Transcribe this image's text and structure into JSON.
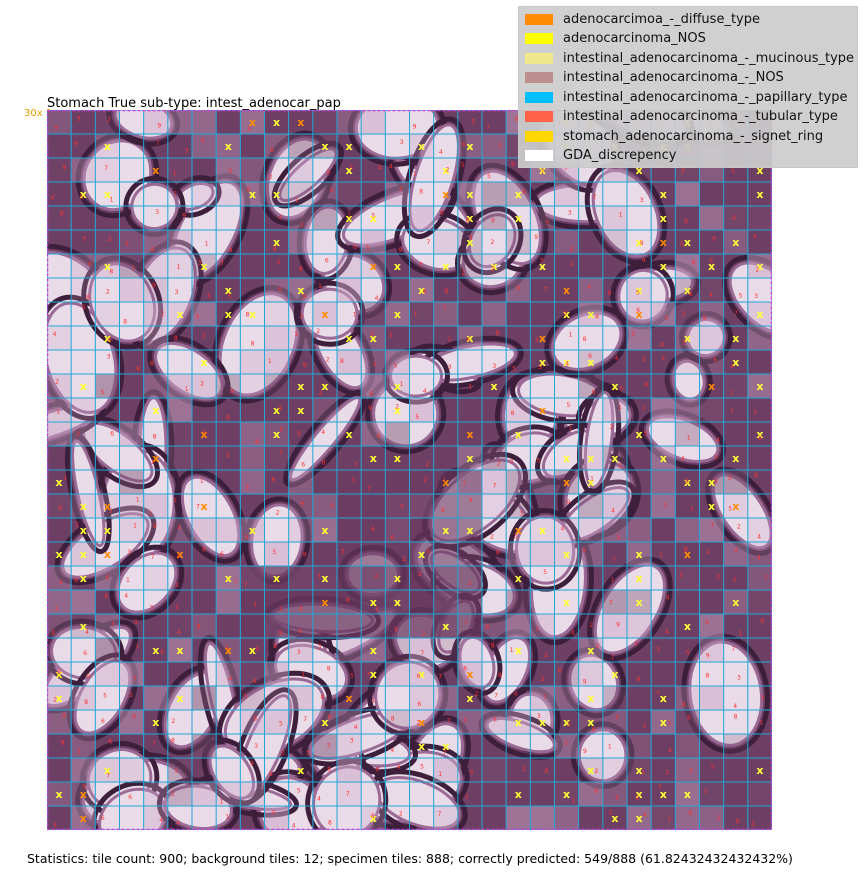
{
  "figure": {
    "title": "Stomach  True sub-type: intest_adenocar_pap",
    "magnification": "30x 1",
    "statistics": "Statistics: tile count: 900; background tiles: 12; specimen tiles: 888; correctly predicted: 549/888 (61.82432432432432%)"
  },
  "grid": {
    "rows": 30,
    "cols": 30,
    "line_color": "#1fa8d8",
    "outline_color": "#d63ad6"
  },
  "legend": {
    "items": [
      {
        "label": "adenocarcimoa_-_diffuse_type",
        "color": "#ff8c00"
      },
      {
        "label": "adenocarcinoma_NOS",
        "color": "#ffff00"
      },
      {
        "label": "intestinal_adenocarcinoma_-_mucinous_type",
        "color": "#f0e68c"
      },
      {
        "label": "intestinal_adenocarcinoma_-_NOS",
        "color": "#bc8f8f"
      },
      {
        "label": "intestinal_adenocarcinoma_-_papillary_type",
        "color": "#00bfff"
      },
      {
        "label": "intestinal_adenocarcinoma_-_tubular_type",
        "color": "#ff6347"
      },
      {
        "label": "stomach_adenocarcinoma_-_signet_ring",
        "color": "#ffd700"
      },
      {
        "label": "GDA_discrepency",
        "color": "#ffffff"
      }
    ]
  }
}
